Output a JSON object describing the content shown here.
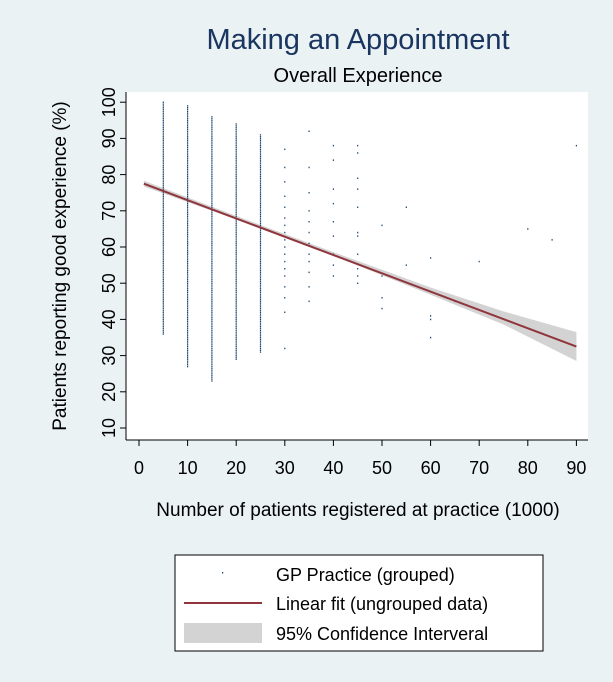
{
  "colors": {
    "background": "#eaf2f3",
    "plot": "#ffffff",
    "points": "#1a476f",
    "fit": "#90353b",
    "ci": "#d3d3d3",
    "title": "#1a3560",
    "text": "#000000"
  },
  "chart_data": {
    "type": "scatter",
    "title": "Making an Appointment",
    "subtitle": "Overall Experience",
    "xlabel": "Number of patients registered at practice (1000)",
    "ylabel": "Patients reporting good experience (%)",
    "xlim": [
      0,
      92
    ],
    "ylim": [
      7,
      102
    ],
    "xticks": [
      0,
      10,
      20,
      30,
      40,
      50,
      60,
      70,
      80,
      90
    ],
    "yticks": [
      10,
      20,
      30,
      40,
      50,
      60,
      70,
      80,
      90,
      100
    ],
    "grid": false,
    "legend_position": "bottom",
    "legend": [
      "GP Practice (grouped)",
      "Linear fit (ungrouped data)",
      "95% Confidence Interveral"
    ],
    "point_columns": [
      {
        "x": 5,
        "ymin": 36,
        "ymax": 100
      },
      {
        "x": 10,
        "ymin": 27,
        "ymax": 99
      },
      {
        "x": 15,
        "ymin": 23,
        "ymax": 96
      },
      {
        "x": 20,
        "ymin": 29,
        "ymax": 94
      },
      {
        "x": 25,
        "ymin": 31,
        "ymax": 91
      }
    ],
    "points": [
      {
        "x": 30,
        "y": 87
      },
      {
        "x": 30,
        "y": 82
      },
      {
        "x": 30,
        "y": 78
      },
      {
        "x": 30,
        "y": 74
      },
      {
        "x": 30,
        "y": 71
      },
      {
        "x": 30,
        "y": 68
      },
      {
        "x": 30,
        "y": 66
      },
      {
        "x": 30,
        "y": 64
      },
      {
        "x": 30,
        "y": 62
      },
      {
        "x": 30,
        "y": 60
      },
      {
        "x": 30,
        "y": 58
      },
      {
        "x": 30,
        "y": 56
      },
      {
        "x": 30,
        "y": 54
      },
      {
        "x": 30,
        "y": 52
      },
      {
        "x": 30,
        "y": 49
      },
      {
        "x": 30,
        "y": 46
      },
      {
        "x": 30,
        "y": 42
      },
      {
        "x": 30,
        "y": 32
      },
      {
        "x": 35,
        "y": 92
      },
      {
        "x": 35,
        "y": 82
      },
      {
        "x": 35,
        "y": 75
      },
      {
        "x": 35,
        "y": 70
      },
      {
        "x": 35,
        "y": 67
      },
      {
        "x": 35,
        "y": 64
      },
      {
        "x": 35,
        "y": 61
      },
      {
        "x": 35,
        "y": 58
      },
      {
        "x": 35,
        "y": 56
      },
      {
        "x": 35,
        "y": 53
      },
      {
        "x": 35,
        "y": 49
      },
      {
        "x": 35,
        "y": 45
      },
      {
        "x": 40,
        "y": 88
      },
      {
        "x": 40,
        "y": 84
      },
      {
        "x": 40,
        "y": 76
      },
      {
        "x": 40,
        "y": 72
      },
      {
        "x": 40,
        "y": 67
      },
      {
        "x": 40,
        "y": 63
      },
      {
        "x": 40,
        "y": 58
      },
      {
        "x": 40,
        "y": 55
      },
      {
        "x": 40,
        "y": 52
      },
      {
        "x": 45,
        "y": 88
      },
      {
        "x": 45,
        "y": 86
      },
      {
        "x": 45,
        "y": 79
      },
      {
        "x": 45,
        "y": 76
      },
      {
        "x": 45,
        "y": 71
      },
      {
        "x": 45,
        "y": 64
      },
      {
        "x": 45,
        "y": 63
      },
      {
        "x": 45,
        "y": 58
      },
      {
        "x": 45,
        "y": 54
      },
      {
        "x": 45,
        "y": 52
      },
      {
        "x": 45,
        "y": 50
      },
      {
        "x": 50,
        "y": 66
      },
      {
        "x": 50,
        "y": 52
      },
      {
        "x": 50,
        "y": 46
      },
      {
        "x": 50,
        "y": 43
      },
      {
        "x": 55,
        "y": 71
      },
      {
        "x": 55,
        "y": 55
      },
      {
        "x": 60,
        "y": 57
      },
      {
        "x": 60,
        "y": 41
      },
      {
        "x": 60,
        "y": 40
      },
      {
        "x": 60,
        "y": 35
      },
      {
        "x": 65,
        "y": 45
      },
      {
        "x": 70,
        "y": 56
      },
      {
        "x": 80,
        "y": 65
      },
      {
        "x": 85,
        "y": 62
      },
      {
        "x": 90,
        "y": 88
      }
    ],
    "fit": {
      "x": [
        1,
        90
      ],
      "y": [
        77.5,
        32.5
      ]
    },
    "ci": [
      {
        "x": 1,
        "lo": 76.7,
        "hi": 78.3
      },
      {
        "x": 20,
        "lo": 67.6,
        "hi": 68.6
      },
      {
        "x": 40,
        "lo": 57.6,
        "hi": 58.6
      },
      {
        "x": 60,
        "lo": 46.8,
        "hi": 48.8
      },
      {
        "x": 75,
        "lo": 38.6,
        "hi": 42.2
      },
      {
        "x": 90,
        "lo": 28.5,
        "hi": 36.5
      }
    ]
  }
}
